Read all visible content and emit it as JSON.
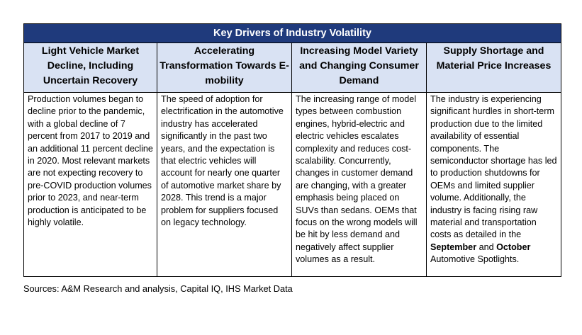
{
  "title": "Key Drivers of Industry Volatility",
  "columns": [
    {
      "header": "Light Vehicle Market Decline, Including Uncertain Recovery",
      "text": "Production volumes began to decline prior to the pandemic, with a global decline of 7 percent from 2017 to 2019 and an additional 11 percent decline in 2020.  Most relevant markets are not expecting recovery to pre-COVID production volumes prior to 2023, and near-term production is anticipated to be highly volatile."
    },
    {
      "header": "Accelerating Transformation Towards E-mobility",
      "text": "The speed of adoption for electrification in the automotive industry has accelerated significantly in the past two years, and the expectation is that electric vehicles will account for nearly one quarter of automotive market share by 2028. This trend is a major problem for suppliers focused on legacy technology."
    },
    {
      "header": "Increasing Model Variety and Changing Consumer Demand",
      "text": "The increasing range of model types between combustion engines, hybrid-electric and electric vehicles escalates complexity and reduces cost-scalability. Concurrently, changes in customer demand are changing, with a greater emphasis being placed on SUVs than sedans. OEMs that focus on the wrong models will be hit by less demand and negatively affect supplier volumes as a result."
    },
    {
      "header": "Supply Shortage and Material Price Increases",
      "text_before": "The industry is experiencing significant hurdles in short-term production due to the limited availability of essential components. The semiconductor shortage has led to production shutdowns for OEMs and limited supplier volume. Additionally, the industry is facing rising raw material and transportation costs as detailed in the ",
      "bold_1": "September",
      "text_mid": " and ",
      "bold_2": "October",
      "text_after": " Automotive Spotlights."
    }
  ],
  "source": "Sources: A&M Research and analysis, Capital IQ, IHS Market Data",
  "colors": {
    "title_bg": "#1f3a7c",
    "header_bg": "#d9e2f3"
  }
}
